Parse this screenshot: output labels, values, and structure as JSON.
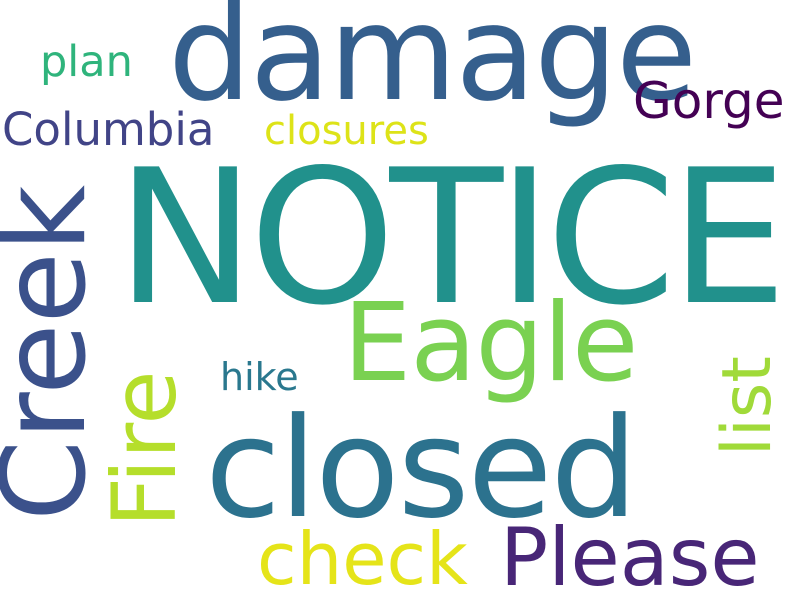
{
  "words": {
    "notice": {
      "text": "NOTICE",
      "color": "#21918c"
    },
    "damage": {
      "text": "damage",
      "color": "#355f8d"
    },
    "closed": {
      "text": "closed",
      "color": "#2c728e"
    },
    "creek": {
      "text": "Creek",
      "color": "#3b518b"
    },
    "eagle": {
      "text": "Eagle",
      "color": "#7ad151"
    },
    "fire": {
      "text": "Fire",
      "color": "#b5de2b"
    },
    "please": {
      "text": "Please",
      "color": "#482677"
    },
    "check": {
      "text": "check",
      "color": "#e5e419"
    },
    "list": {
      "text": "list",
      "color": "#a0da39"
    },
    "gorge": {
      "text": "Gorge",
      "color": "#440154"
    },
    "columbia": {
      "text": "Columbia",
      "color": "#414487"
    },
    "closures": {
      "text": "closures",
      "color": "#dde318"
    },
    "plan": {
      "text": "plan",
      "color": "#2fb47c"
    },
    "hike": {
      "text": "hike",
      "color": "#2a788e"
    }
  }
}
